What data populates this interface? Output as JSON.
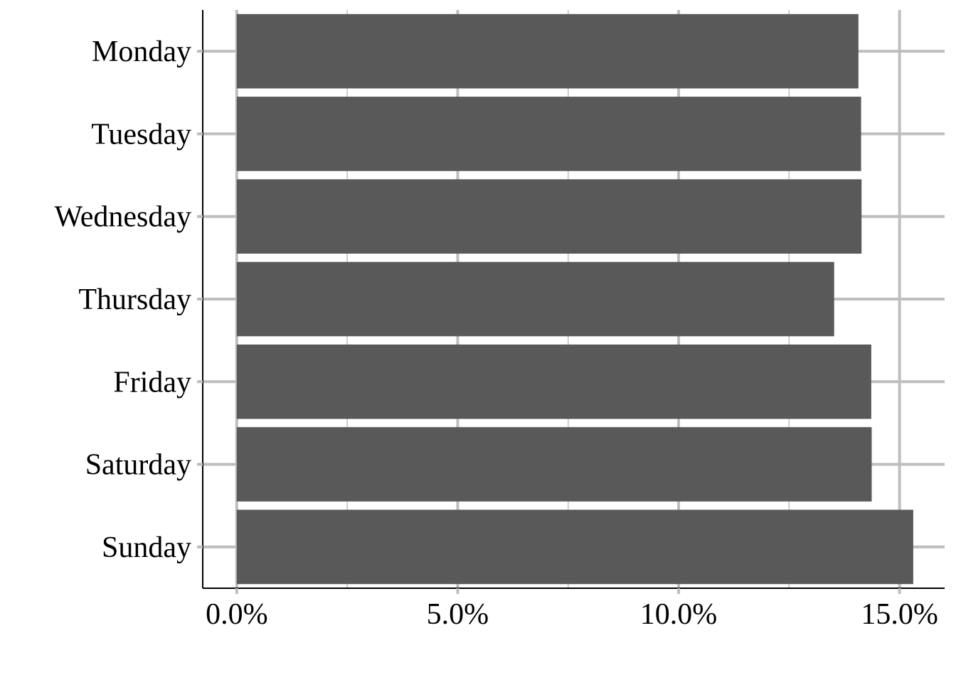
{
  "chart_data": {
    "type": "bar",
    "orientation": "horizontal",
    "categories": [
      "Monday",
      "Tuesday",
      "Wednesday",
      "Thursday",
      "Friday",
      "Saturday",
      "Sunday"
    ],
    "values": [
      14.07,
      14.13,
      14.14,
      13.52,
      14.36,
      14.37,
      15.31
    ],
    "title": "",
    "xlabel": "",
    "ylabel": "",
    "xlim": [
      -0.77,
      16.02
    ],
    "x_ticks": [
      0,
      5,
      10,
      15
    ],
    "x_tick_labels": [
      "0.0%",
      "5.0%",
      "10.0%",
      "15.0%"
    ],
    "x_minor_ticks": [
      2.5,
      7.5,
      12.5
    ],
    "grid": true,
    "legend": "none",
    "colors": {
      "bar": "#595959",
      "grid": "#bebebe",
      "axis": "#000000"
    }
  }
}
